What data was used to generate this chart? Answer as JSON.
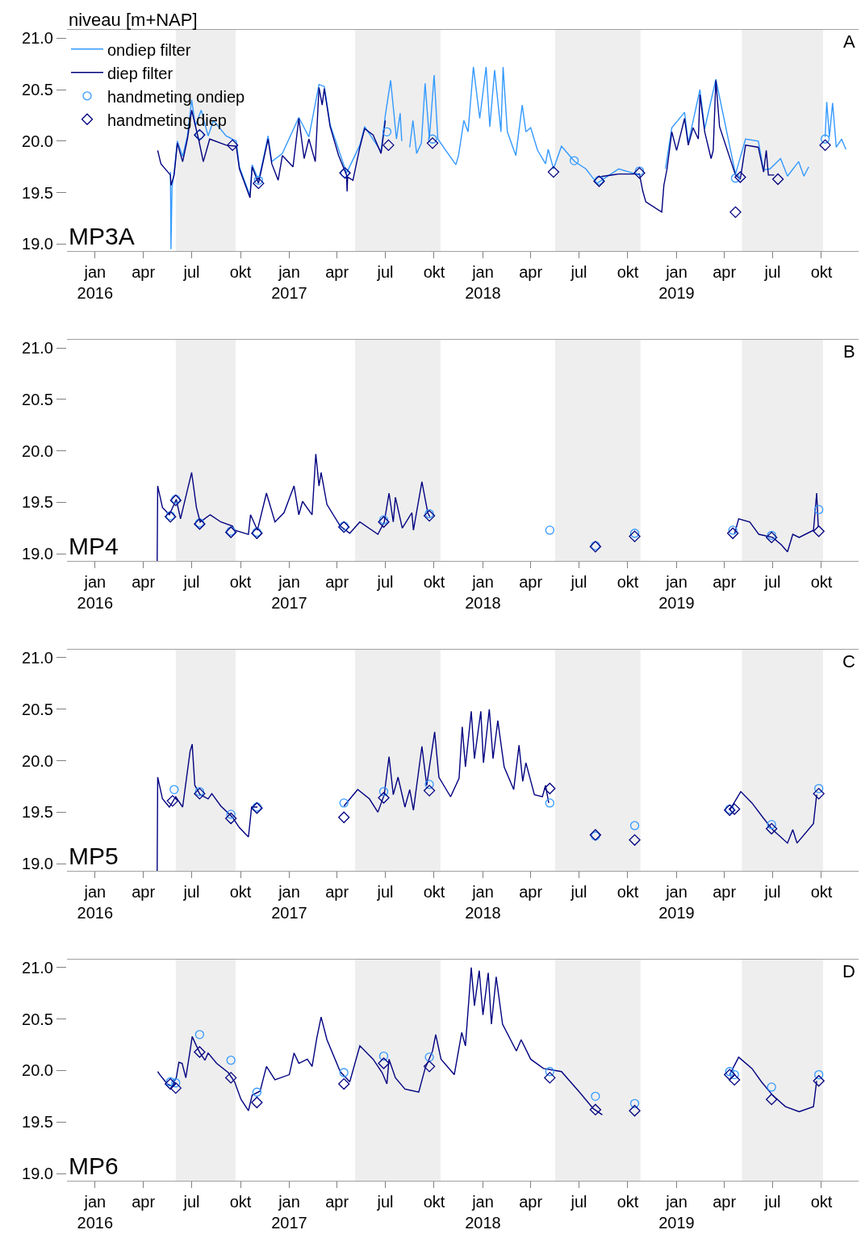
{
  "chart_data": [
    {
      "type": "line",
      "ylabel": "niveau [m+NAP]",
      "annotations": [
        "MP3A",
        "A"
      ],
      "legend": "top left",
      "grid": false,
      "xlim": [
        "2015-11-09",
        "2019-12-10"
      ],
      "xticks": [
        {
          "value": "2016-01-01",
          "label": "jan\n2016"
        },
        {
          "value": "2016-04-01",
          "label": "apr"
        },
        {
          "value": "2016-07-01",
          "label": "jul"
        },
        {
          "value": "2016-10-01",
          "label": "okt"
        },
        {
          "value": "2017-01-01",
          "label": "jan\n2017"
        },
        {
          "value": "2017-04-01",
          "label": "apr"
        },
        {
          "value": "2017-07-01",
          "label": "jul"
        },
        {
          "value": "2017-10-01",
          "label": "okt"
        },
        {
          "value": "2018-01-01",
          "label": "jan\n2018"
        },
        {
          "value": "2018-04-01",
          "label": "apr"
        },
        {
          "value": "2018-07-01",
          "label": "jul"
        },
        {
          "value": "2018-10-01",
          "label": "okt"
        },
        {
          "value": "2019-01-01",
          "label": "jan\n2019"
        },
        {
          "value": "2019-04-01",
          "label": "apr"
        },
        {
          "value": "2019-07-01",
          "label": "jul"
        },
        {
          "value": "2019-10-01",
          "label": "okt"
        }
      ],
      "ylim": [
        18.93,
        21.08
      ],
      "yticks": [
        {
          "value": 19,
          "label": "19.0"
        },
        {
          "value": 19.5,
          "label": "19.5"
        },
        {
          "value": 20,
          "label": "20.0"
        },
        {
          "value": 20.5,
          "label": "20.5"
        },
        {
          "value": 21,
          "label": "21.0"
        }
      ],
      "bands": [
        {
          "axis": "x",
          "from": "2016-06-01",
          "to": "2016-09-22",
          "color": "#eeeeee"
        },
        {
          "axis": "x",
          "from": "2017-05-05",
          "to": "2017-10-13",
          "color": "#eeeeee"
        },
        {
          "axis": "x",
          "from": "2018-05-17",
          "to": "2018-10-25",
          "color": "#eeeeee"
        },
        {
          "axis": "x",
          "from": "2019-05-04",
          "to": "2019-10-04",
          "color": "#eeeeee"
        }
      ],
      "series": [
        {
          "name": "ondiep filter",
          "color": "#3399ff",
          "x": [
            "2016-05-22",
            "2016-05-23",
            "2016-05-25",
            "2016-05-29",
            "2016-06-04",
            "2016-06-14",
            "2016-06-23",
            "2016-07-01",
            "2016-07-08",
            "2016-07-19",
            "2016-08-01",
            "2016-08-11",
            "2016-09-04",
            "2016-09-23",
            "2016-09-29",
            "2016-10-19",
            "2016-10-23",
            "2016-11-04",
            "2016-11-14",
            "2016-11-22",
            "2016-11-29",
            "2016-12-19",
            "2017-01-19",
            "2017-02-07",
            "2017-02-26",
            "2017-03-08",
            "2017-03-19",
            "2017-04-19",
            "2017-05-14",
            "2017-05-23",
            "2017-06-23",
            "2017-07-01",
            "2017-07-11",
            "2017-07-22",
            "2017-07-29",
            "2017-08-01",
            "2017-08-08",
            "2017-08-16",
            "2017-08-22",
            "2017-08-29",
            "2017-09-07",
            "2017-09-14",
            "2017-09-22",
            "2017-10-01",
            "2017-10-08",
            "2017-10-23",
            "2017-11-11",
            "2017-11-16",
            "2017-11-26",
            "2017-12-04",
            "2017-12-14",
            "2017-12-26",
            "2018-01-07",
            "2018-01-14",
            "2018-01-23",
            "2018-02-04",
            "2018-02-08",
            "2018-02-16",
            "2018-03-04",
            "2018-03-16",
            "2018-03-23",
            "2018-04-01",
            "2018-04-14",
            "2018-04-29",
            "2018-05-04",
            "2018-05-14",
            "2018-05-29",
            "2018-06-23",
            "2018-07-14",
            "2018-08-04",
            "2018-09-14",
            "2018-10-23",
            "2018-11-15",
            "2018-12-11",
            "2018-12-23",
            "2019-01-16",
            "2019-01-23",
            "2019-02-14",
            "2019-02-23",
            "2019-03-16",
            "2019-04-22",
            "2019-05-11",
            "2019-06-04",
            "2019-06-14",
            "2019-06-26",
            "2019-07-16",
            "2019-07-29",
            "2019-08-19",
            "2019-08-29",
            "2019-09-07",
            "2019-09-20",
            "2019-10-08",
            "2019-10-11",
            "2019-10-16",
            "2019-10-22",
            "2019-10-29",
            "2019-11-08",
            "2019-11-16"
          ],
          "values": [
            19.7,
            18.95,
            19.55,
            19.7,
            20.0,
            19.85,
            20.05,
            20.4,
            20.15,
            20.3,
            20.05,
            20.2,
            20.05,
            20.0,
            19.75,
            19.47,
            19.77,
            19.62,
            19.85,
            20.05,
            19.8,
            19.88,
            20.23,
            20.04,
            20.55,
            20.53,
            20.16,
            19.69,
            19.96,
            20.14,
            19.9,
            20.25,
            20.59,
            20.02,
            20.27,
            20.0,
            null,
            19.94,
            20.2,
            19.88,
            19.98,
            20.56,
            20.02,
            20.64,
            20.02,
            19.91,
            19.77,
            19.86,
            20.2,
            20.09,
            20.72,
            20.22,
            20.72,
            20.14,
            20.69,
            20.09,
            20.72,
            20.09,
            19.86,
            20.35,
            20.09,
            20.13,
            19.91,
            19.78,
            19.92,
            19.73,
            19.95,
            19.8,
            19.73,
            19.59,
            19.73,
            19.67,
            null,
            19.73,
            20.13,
            20.28,
            19.98,
            20.5,
            20.12,
            20.6,
            19.68,
            20.02,
            20.0,
            19.72,
            19.73,
            19.83,
            19.66,
            19.8,
            19.66,
            19.75,
            null,
            20.04,
            20.38,
            20.04,
            20.37,
            19.94,
            20.02,
            19.92
          ]
        },
        {
          "name": "diep filter",
          "color": "#000080",
          "x": [
            "2016-04-28",
            "2016-05-04",
            "2016-05-22",
            "2016-05-23",
            "2016-05-29",
            "2016-06-04",
            "2016-06-14",
            "2016-06-23",
            "2016-07-01",
            "2016-07-14",
            "2016-07-23",
            "2016-08-04",
            "2016-09-04",
            "2016-09-23",
            "2016-09-29",
            "2016-10-19",
            "2016-10-23",
            "2016-11-04",
            "2016-11-14",
            "2016-11-22",
            "2016-11-29",
            "2016-12-11",
            "2016-12-19",
            "2017-01-08",
            "2017-01-19",
            "2017-01-29",
            "2017-02-07",
            "2017-02-19",
            "2017-02-26",
            "2017-03-04",
            "2017-03-08",
            "2017-03-19",
            "2017-04-04",
            "2017-04-19",
            "2017-04-20",
            "2017-04-21",
            "2017-05-01",
            "2017-05-14",
            "2017-05-23",
            "2017-06-08",
            "2017-06-23",
            "2017-07-01",
            "2018-01-01",
            "2018-08-04",
            "2018-09-14",
            "2018-10-23",
            "2018-10-29",
            "2018-11-04",
            "2018-12-04",
            "2018-12-08",
            "2018-12-14",
            "2018-12-23",
            "2019-01-01",
            "2019-01-16",
            "2019-01-23",
            "2019-02-01",
            "2019-02-11",
            "2019-02-14",
            "2019-02-23",
            "2019-03-07",
            "2019-03-11",
            "2019-03-16",
            "2019-03-23",
            "2019-04-22",
            "2019-05-01",
            "2019-05-11",
            "2019-06-04",
            "2019-06-14",
            "2019-06-19",
            "2019-06-23",
            "2019-07-04"
          ],
          "values": [
            19.91,
            19.78,
            19.67,
            19.57,
            19.67,
            19.98,
            19.8,
            20.02,
            20.3,
            20.02,
            19.8,
            20.02,
            19.96,
            19.95,
            19.73,
            19.45,
            19.75,
            19.59,
            19.83,
            20.02,
            19.78,
            19.62,
            19.86,
            19.75,
            20.22,
            19.83,
            20.02,
            19.8,
            20.52,
            20.35,
            20.51,
            20.14,
            19.86,
            19.67,
            19.51,
            19.65,
            19.62,
            19.94,
            20.12,
            20.06,
            19.88,
            20.2,
            null,
            19.65,
            19.68,
            19.68,
            19.52,
            19.41,
            19.31,
            19.57,
            19.73,
            20.09,
            19.91,
            20.22,
            19.96,
            20.13,
            20.02,
            20.45,
            20.09,
            19.83,
            19.91,
            20.59,
            20.14,
            19.67,
            19.63,
            19.96,
            19.94,
            19.7,
            19.91,
            19.67,
            19.67
          ]
        },
        {
          "name": "handmeting ondiep",
          "type": "scatter",
          "marker": "circle",
          "color": "#3399ff",
          "x": [
            "2016-07-16",
            "2016-11-04",
            "2017-04-16",
            "2017-07-04",
            "2017-09-28",
            "2018-06-22",
            "2018-08-08",
            "2018-10-23",
            "2019-04-22",
            "2019-10-08"
          ],
          "values": [
            20.06,
            19.62,
            19.69,
            20.09,
            20.02,
            19.81,
            19.62,
            19.71,
            19.64,
            20.02
          ]
        },
        {
          "name": "handmeting diep",
          "type": "scatter",
          "marker": "diamond",
          "color": "#000080",
          "x": [
            "2016-07-16",
            "2016-09-16",
            "2016-11-04",
            "2017-04-16",
            "2017-07-07",
            "2017-09-28",
            "2018-05-14",
            "2018-08-08",
            "2018-10-23",
            "2019-04-22",
            "2019-05-01",
            "2019-07-11",
            "2019-10-08"
          ],
          "values": [
            20.06,
            19.96,
            19.59,
            19.69,
            19.96,
            19.98,
            19.7,
            19.61,
            19.69,
            19.31,
            19.65,
            19.63,
            19.96
          ]
        }
      ]
    },
    {
      "type": "line",
      "annotations": [
        "MP4",
        "B"
      ],
      "grid": false,
      "xlim": [
        "2015-11-09",
        "2019-12-10"
      ],
      "xticks": [
        {
          "value": "2016-01-01",
          "label": "jan\n2016"
        },
        {
          "value": "2016-04-01",
          "label": "apr"
        },
        {
          "value": "2016-07-01",
          "label": "jul"
        },
        {
          "value": "2016-10-01",
          "label": "okt"
        },
        {
          "value": "2017-01-01",
          "label": "jan\n2017"
        },
        {
          "value": "2017-04-01",
          "label": "apr"
        },
        {
          "value": "2017-07-01",
          "label": "jul"
        },
        {
          "value": "2017-10-01",
          "label": "okt"
        },
        {
          "value": "2018-01-01",
          "label": "jan\n2018"
        },
        {
          "value": "2018-04-01",
          "label": "apr"
        },
        {
          "value": "2018-07-01",
          "label": "jul"
        },
        {
          "value": "2018-10-01",
          "label": "okt"
        },
        {
          "value": "2019-01-01",
          "label": "jan\n2019"
        },
        {
          "value": "2019-04-01",
          "label": "apr"
        },
        {
          "value": "2019-07-01",
          "label": "jul"
        },
        {
          "value": "2019-10-01",
          "label": "okt"
        }
      ],
      "ylim": [
        18.93,
        21.08
      ],
      "yticks": [
        {
          "value": 19,
          "label": "19.0"
        },
        {
          "value": 19.5,
          "label": "19.5"
        },
        {
          "value": 20,
          "label": "20.0"
        },
        {
          "value": 20.5,
          "label": "20.5"
        },
        {
          "value": 21,
          "label": "21.0"
        }
      ],
      "bands": [
        {
          "axis": "x",
          "from": "2016-06-01",
          "to": "2016-09-22",
          "color": "#eeeeee"
        },
        {
          "axis": "x",
          "from": "2017-05-05",
          "to": "2017-10-13",
          "color": "#eeeeee"
        },
        {
          "axis": "x",
          "from": "2018-05-17",
          "to": "2018-10-25",
          "color": "#eeeeee"
        },
        {
          "axis": "x",
          "from": "2019-05-04",
          "to": "2019-10-04",
          "color": "#eeeeee"
        }
      ],
      "series": [
        {
          "color": "#000080",
          "x": [
            "2016-04-27",
            "2016-04-28",
            "2016-05-07",
            "2016-05-20",
            "2016-06-02",
            "2016-06-10",
            "2016-06-23",
            "2016-07-01",
            "2016-07-10",
            "2016-07-17",
            "2016-08-05",
            "2016-08-25",
            "2016-09-16",
            "2016-09-20",
            "2016-10-16",
            "2016-10-20",
            "2016-11-02",
            "2016-11-19",
            "2016-12-05",
            "2016-12-22",
            "2017-01-10",
            "2017-01-19",
            "2017-01-26",
            "2017-02-13",
            "2017-02-20",
            "2017-02-26",
            "2017-03-02",
            "2017-03-13",
            "2017-04-07",
            "2017-04-25",
            "2017-05-14",
            "2017-06-17",
            "2017-06-29",
            "2017-07-08",
            "2017-07-16",
            "2017-07-20",
            "2017-08-02",
            "2017-08-20",
            "2017-08-23",
            "2017-09-08",
            "2017-09-19",
            "2017-09-23",
            "2018-06-01",
            "2019-04-20",
            "2019-04-28",
            "2019-05-19",
            "2019-06-05",
            "2019-07-01",
            "2019-07-17",
            "2019-07-29",
            "2019-08-08",
            "2019-08-20",
            "2019-09-16",
            "2019-09-22",
            "2019-09-25"
          ],
          "values": [
            18.93,
            19.66,
            19.45,
            19.38,
            19.53,
            19.34,
            19.62,
            19.79,
            19.45,
            19.31,
            19.38,
            19.31,
            19.27,
            19.23,
            19.19,
            19.38,
            19.23,
            19.59,
            19.31,
            19.4,
            19.66,
            19.38,
            19.51,
            19.38,
            19.97,
            19.66,
            19.79,
            19.48,
            19.27,
            19.2,
            19.31,
            19.19,
            19.31,
            19.59,
            19.31,
            19.55,
            19.25,
            19.4,
            19.23,
            19.7,
            19.4,
            19.36,
            null,
            19.19,
            19.34,
            19.31,
            19.19,
            19.16,
            19.09,
            19.02,
            19.19,
            19.16,
            19.23,
            19.59,
            19.27
          ]
        },
        {
          "type": "scatter",
          "marker": "circle",
          "color": "#3399ff",
          "x": [
            "2016-05-22",
            "2016-06-01",
            "2016-07-16",
            "2016-09-13",
            "2016-11-01",
            "2017-04-14",
            "2017-06-28",
            "2017-09-22",
            "2018-05-07",
            "2018-08-01",
            "2018-10-14",
            "2019-04-17",
            "2019-06-29",
            "2019-09-26"
          ],
          "values": [
            19.37,
            19.53,
            19.3,
            19.22,
            19.21,
            19.27,
            19.33,
            19.39,
            19.23,
            19.08,
            19.2,
            19.23,
            19.18,
            19.43
          ]
        },
        {
          "type": "scatter",
          "marker": "diamond",
          "color": "#000080",
          "x": [
            "2016-05-22",
            "2016-06-01",
            "2016-07-16",
            "2016-09-13",
            "2016-11-01",
            "2017-04-14",
            "2017-06-28",
            "2017-09-22",
            "2018-08-01",
            "2018-10-14",
            "2019-04-17",
            "2019-06-29",
            "2019-09-26"
          ],
          "values": [
            19.36,
            19.52,
            19.29,
            19.21,
            19.2,
            19.26,
            19.31,
            19.37,
            19.07,
            19.17,
            19.2,
            19.16,
            19.22
          ]
        }
      ]
    },
    {
      "type": "line",
      "annotations": [
        "MP5",
        "C"
      ],
      "grid": false,
      "xlim": [
        "2015-11-09",
        "2019-12-10"
      ],
      "xticks": [
        {
          "value": "2016-01-01",
          "label": "jan\n2016"
        },
        {
          "value": "2016-04-01",
          "label": "apr"
        },
        {
          "value": "2016-07-01",
          "label": "jul"
        },
        {
          "value": "2016-10-01",
          "label": "okt"
        },
        {
          "value": "2017-01-01",
          "label": "jan\n2017"
        },
        {
          "value": "2017-04-01",
          "label": "apr"
        },
        {
          "value": "2017-07-01",
          "label": "jul"
        },
        {
          "value": "2017-10-01",
          "label": "okt"
        },
        {
          "value": "2018-01-01",
          "label": "jan\n2018"
        },
        {
          "value": "2018-04-01",
          "label": "apr"
        },
        {
          "value": "2018-07-01",
          "label": "jul"
        },
        {
          "value": "2018-10-01",
          "label": "okt"
        },
        {
          "value": "2019-01-01",
          "label": "jan\n2019"
        },
        {
          "value": "2019-04-01",
          "label": "apr"
        },
        {
          "value": "2019-07-01",
          "label": "jul"
        },
        {
          "value": "2019-10-01",
          "label": "okt"
        }
      ],
      "ylim": [
        18.93,
        21.08
      ],
      "yticks": [
        {
          "value": 19,
          "label": "19.0"
        },
        {
          "value": 19.5,
          "label": "19.5"
        },
        {
          "value": 20,
          "label": "20.0"
        },
        {
          "value": 20.5,
          "label": "20.5"
        },
        {
          "value": 21,
          "label": "21.0"
        }
      ],
      "bands": [
        {
          "axis": "x",
          "from": "2016-06-01",
          "to": "2016-09-22",
          "color": "#eeeeee"
        },
        {
          "axis": "x",
          "from": "2017-05-05",
          "to": "2017-10-13",
          "color": "#eeeeee"
        },
        {
          "axis": "x",
          "from": "2018-05-17",
          "to": "2018-10-25",
          "color": "#eeeeee"
        },
        {
          "axis": "x",
          "from": "2019-05-04",
          "to": "2019-10-04",
          "color": "#eeeeee"
        }
      ],
      "series": [
        {
          "color": "#000080",
          "x": [
            "2016-04-27",
            "2016-04-28",
            "2016-05-07",
            "2016-05-20",
            "2016-06-01",
            "2016-06-14",
            "2016-06-28",
            "2016-07-02",
            "2016-07-07",
            "2016-07-17",
            "2016-08-01",
            "2016-08-08",
            "2016-08-25",
            "2016-09-16",
            "2016-09-29",
            "2016-10-16",
            "2016-10-22",
            "2016-11-02",
            "2017-01-01",
            "2017-04-14",
            "2017-05-10",
            "2017-06-01",
            "2017-06-17",
            "2017-06-29",
            "2017-07-08",
            "2017-07-16",
            "2017-07-25",
            "2017-08-07",
            "2017-08-16",
            "2017-08-23",
            "2017-09-08",
            "2017-09-17",
            "2017-10-02",
            "2017-10-10",
            "2017-11-01",
            "2017-11-17",
            "2017-11-23",
            "2017-11-29",
            "2017-12-10",
            "2017-12-16",
            "2017-12-28",
            "2018-01-02",
            "2018-01-13",
            "2018-01-20",
            "2018-01-29",
            "2018-02-10",
            "2018-02-28",
            "2018-03-10",
            "2018-03-17",
            "2018-03-23",
            "2018-04-08",
            "2018-04-23",
            "2018-04-29",
            "2018-05-05",
            "2018-10-01",
            "2019-04-11",
            "2019-05-02",
            "2019-05-23",
            "2019-06-14",
            "2019-07-01",
            "2019-07-29",
            "2019-08-08",
            "2019-08-16",
            "2019-09-16",
            "2019-09-22"
          ],
          "values": [
            18.93,
            19.84,
            19.63,
            19.55,
            19.65,
            19.55,
            20.09,
            20.16,
            19.76,
            19.67,
            19.63,
            19.68,
            19.56,
            19.45,
            19.35,
            19.26,
            19.55,
            19.55,
            null,
            19.56,
            19.72,
            19.63,
            19.5,
            19.67,
            20.04,
            19.67,
            19.84,
            19.55,
            19.72,
            19.52,
            20.14,
            19.76,
            20.28,
            19.84,
            19.65,
            19.83,
            20.33,
            19.94,
            20.48,
            20.02,
            20.48,
            19.98,
            20.5,
            20.02,
            20.39,
            19.94,
            19.72,
            20.15,
            19.8,
            19.98,
            19.67,
            19.65,
            19.76,
            19.59,
            null,
            19.52,
            19.7,
            19.59,
            19.44,
            19.33,
            19.2,
            19.33,
            19.2,
            19.39,
            19.67
          ]
        },
        {
          "type": "scatter",
          "marker": "circle",
          "color": "#3399ff",
          "x": [
            "2016-05-29",
            "2016-07-16",
            "2016-09-13",
            "2016-11-01",
            "2017-04-14",
            "2017-06-28",
            "2017-09-22",
            "2018-05-07",
            "2018-08-01",
            "2018-10-14",
            "2019-04-11",
            "2019-06-29",
            "2019-09-26"
          ],
          "values": [
            19.72,
            19.7,
            19.48,
            19.55,
            19.59,
            19.7,
            19.77,
            19.59,
            19.27,
            19.37,
            19.53,
            19.38,
            19.73
          ]
        },
        {
          "type": "scatter",
          "marker": "diamond",
          "color": "#000080",
          "x": [
            "2016-05-26",
            "2016-07-16",
            "2016-09-13",
            "2016-11-01",
            "2017-04-14",
            "2017-06-28",
            "2017-09-22",
            "2018-05-07",
            "2018-08-01",
            "2018-10-14",
            "2019-04-11",
            "2019-04-20",
            "2019-06-29",
            "2019-09-26"
          ],
          "values": [
            19.61,
            19.68,
            19.44,
            19.54,
            19.45,
            19.64,
            19.71,
            19.73,
            19.28,
            19.23,
            19.52,
            19.53,
            19.34,
            19.68
          ]
        }
      ]
    },
    {
      "type": "line",
      "annotations": [
        "MP6",
        "D"
      ],
      "grid": false,
      "xlim": [
        "2015-11-09",
        "2019-12-10"
      ],
      "xticks": [
        {
          "value": "2016-01-01",
          "label": "jan\n2016"
        },
        {
          "value": "2016-04-01",
          "label": "apr"
        },
        {
          "value": "2016-07-01",
          "label": "jul"
        },
        {
          "value": "2016-10-01",
          "label": "okt"
        },
        {
          "value": "2017-01-01",
          "label": "jan\n2017"
        },
        {
          "value": "2017-04-01",
          "label": "apr"
        },
        {
          "value": "2017-07-01",
          "label": "jul"
        },
        {
          "value": "2017-10-01",
          "label": "okt"
        },
        {
          "value": "2018-01-01",
          "label": "jan\n2018"
        },
        {
          "value": "2018-04-01",
          "label": "apr"
        },
        {
          "value": "2018-07-01",
          "label": "jul"
        },
        {
          "value": "2018-10-01",
          "label": "okt"
        },
        {
          "value": "2019-01-01",
          "label": "jan\n2019"
        },
        {
          "value": "2019-04-01",
          "label": "apr"
        },
        {
          "value": "2019-07-01",
          "label": "jul"
        },
        {
          "value": "2019-10-01",
          "label": "okt"
        }
      ],
      "ylim": [
        18.93,
        21.08
      ],
      "yticks": [
        {
          "value": 19,
          "label": "19.0"
        },
        {
          "value": 19.5,
          "label": "19.5"
        },
        {
          "value": 20,
          "label": "20.0"
        },
        {
          "value": 20.5,
          "label": "20.5"
        },
        {
          "value": 21,
          "label": "21.0"
        }
      ],
      "bands": [
        {
          "axis": "x",
          "from": "2016-06-01",
          "to": "2016-09-22",
          "color": "#eeeeee"
        },
        {
          "axis": "x",
          "from": "2017-05-05",
          "to": "2017-10-13",
          "color": "#eeeeee"
        },
        {
          "axis": "x",
          "from": "2018-05-17",
          "to": "2018-10-25",
          "color": "#eeeeee"
        },
        {
          "axis": "x",
          "from": "2019-05-04",
          "to": "2019-10-04",
          "color": "#eeeeee"
        }
      ],
      "series": [
        {
          "color": "#000080",
          "x": [
            "2016-04-28",
            "2016-05-02",
            "2016-05-16",
            "2016-05-25",
            "2016-06-02",
            "2016-06-07",
            "2016-06-13",
            "2016-06-20",
            "2016-06-28",
            "2016-07-02",
            "2016-07-10",
            "2016-07-17",
            "2016-07-26",
            "2016-08-01",
            "2016-08-17",
            "2016-09-08",
            "2016-09-20",
            "2016-10-02",
            "2016-10-16",
            "2016-10-23",
            "2016-11-07",
            "2016-11-19",
            "2016-12-05",
            "2017-01-01",
            "2017-01-10",
            "2017-01-19",
            "2017-02-04",
            "2017-02-13",
            "2017-02-22",
            "2017-03-02",
            "2017-03-13",
            "2017-04-07",
            "2017-04-25",
            "2017-05-14",
            "2017-06-08",
            "2017-06-25",
            "2017-07-04",
            "2017-07-08",
            "2017-07-20",
            "2017-08-07",
            "2017-09-02",
            "2017-09-14",
            "2017-09-28",
            "2017-10-04",
            "2017-10-14",
            "2017-11-08",
            "2017-11-22",
            "2017-11-29",
            "2017-12-10",
            "2017-12-16",
            "2017-12-25",
            "2018-01-01",
            "2018-01-11",
            "2018-01-17",
            "2018-01-26",
            "2018-02-07",
            "2018-03-05",
            "2018-03-14",
            "2018-04-01",
            "2018-04-25",
            "2018-05-29",
            "2018-07-02",
            "2018-07-28",
            "2018-08-14",
            "2018-12-01",
            "2019-04-11",
            "2019-04-28",
            "2019-05-23",
            "2019-06-10",
            "2019-07-01",
            "2019-07-25",
            "2019-08-20",
            "2019-09-16",
            "2019-09-22"
          ],
          "values": [
            19.99,
            19.96,
            19.87,
            19.85,
            19.93,
            20.08,
            20.07,
            19.93,
            20.19,
            20.33,
            20.24,
            20.17,
            20.1,
            20.17,
            20.07,
            19.98,
            19.89,
            19.72,
            19.61,
            19.76,
            19.8,
            20.04,
            19.91,
            19.96,
            20.17,
            20.07,
            20.11,
            20.04,
            20.32,
            20.52,
            20.3,
            19.99,
            19.89,
            20.24,
            20.11,
            19.98,
            19.87,
            20.11,
            19.93,
            19.82,
            19.79,
            20.02,
            20.19,
            20.35,
            20.11,
            19.96,
            20.37,
            20.24,
            21.0,
            20.63,
            20.97,
            20.54,
            20.95,
            20.45,
            20.91,
            20.45,
            20.19,
            20.3,
            20.11,
            20.02,
            19.99,
            19.79,
            19.63,
            19.57,
            null,
            19.96,
            20.13,
            20.02,
            19.89,
            19.76,
            19.65,
            19.6,
            19.65,
            19.9
          ]
        },
        {
          "type": "scatter",
          "marker": "circle",
          "color": "#3399ff",
          "x": [
            "2016-05-22",
            "2016-06-01",
            "2016-07-16",
            "2016-09-13",
            "2016-11-01",
            "2017-04-14",
            "2017-06-28",
            "2017-09-22",
            "2018-05-07",
            "2018-08-01",
            "2018-10-14",
            "2019-04-11",
            "2019-04-20",
            "2019-06-29",
            "2019-09-26"
          ],
          "values": [
            19.89,
            19.88,
            20.35,
            20.1,
            19.79,
            19.98,
            20.14,
            20.13,
            19.99,
            19.75,
            19.68,
            19.99,
            19.96,
            19.84,
            19.96
          ]
        },
        {
          "type": "scatter",
          "marker": "diamond",
          "color": "#000080",
          "x": [
            "2016-05-22",
            "2016-06-01",
            "2016-07-16",
            "2016-09-13",
            "2016-11-01",
            "2017-04-14",
            "2017-06-28",
            "2017-09-22",
            "2018-05-07",
            "2018-08-01",
            "2018-10-14",
            "2019-04-11",
            "2019-04-20",
            "2019-06-29",
            "2019-09-26"
          ],
          "values": [
            19.87,
            19.83,
            20.18,
            19.93,
            19.69,
            19.87,
            20.07,
            20.04,
            19.93,
            19.62,
            19.61,
            19.96,
            19.91,
            19.72,
            19.9
          ]
        }
      ]
    }
  ]
}
